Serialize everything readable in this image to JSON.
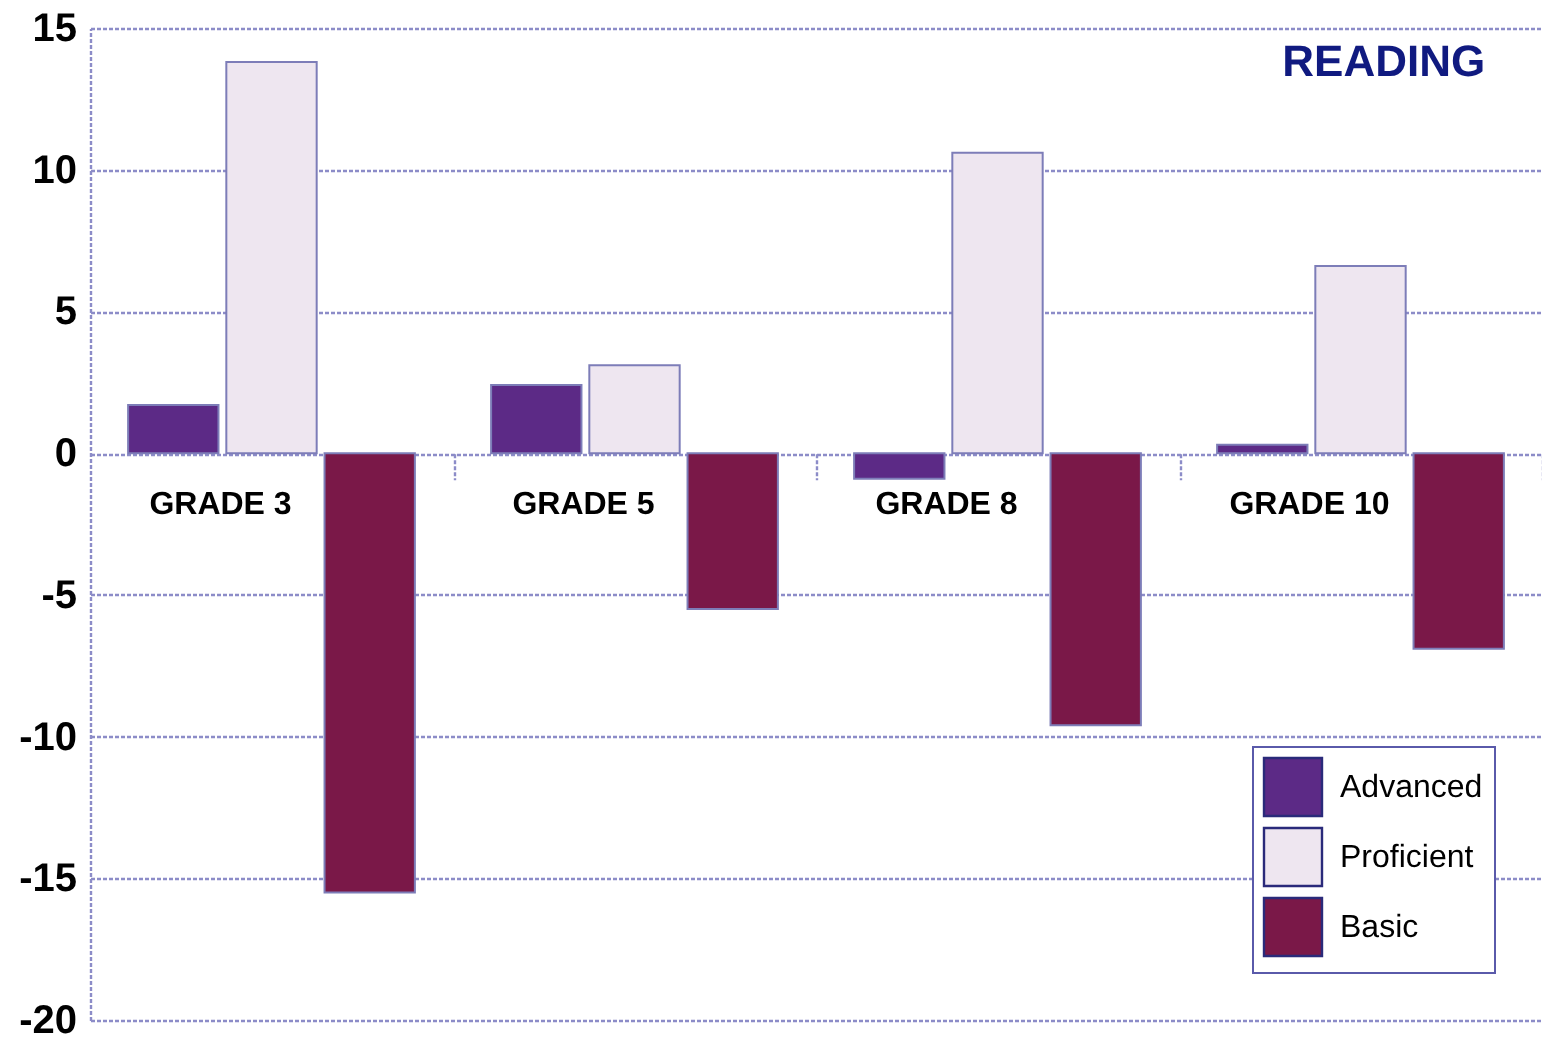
{
  "chart_data": {
    "type": "bar",
    "title": "READING",
    "categories": [
      "GRADE 3",
      "GRADE 5",
      "GRADE 8",
      "GRADE 10"
    ],
    "series": [
      {
        "name": "Advanced",
        "color": "#5c2a86",
        "values": [
          1.7,
          2.4,
          -0.9,
          0.3
        ]
      },
      {
        "name": "Proficient",
        "color": "#eee6f0",
        "values": [
          13.8,
          3.1,
          10.6,
          6.6
        ]
      },
      {
        "name": "Basic",
        "color": "#7a1848",
        "values": [
          -15.5,
          -5.5,
          -9.6,
          -6.9
        ]
      }
    ],
    "ylim": [
      -20,
      15
    ],
    "yticks": [
      -20,
      -15,
      -10,
      -5,
      0,
      5,
      10,
      15
    ],
    "grid": "y",
    "legend": "bottom right"
  }
}
